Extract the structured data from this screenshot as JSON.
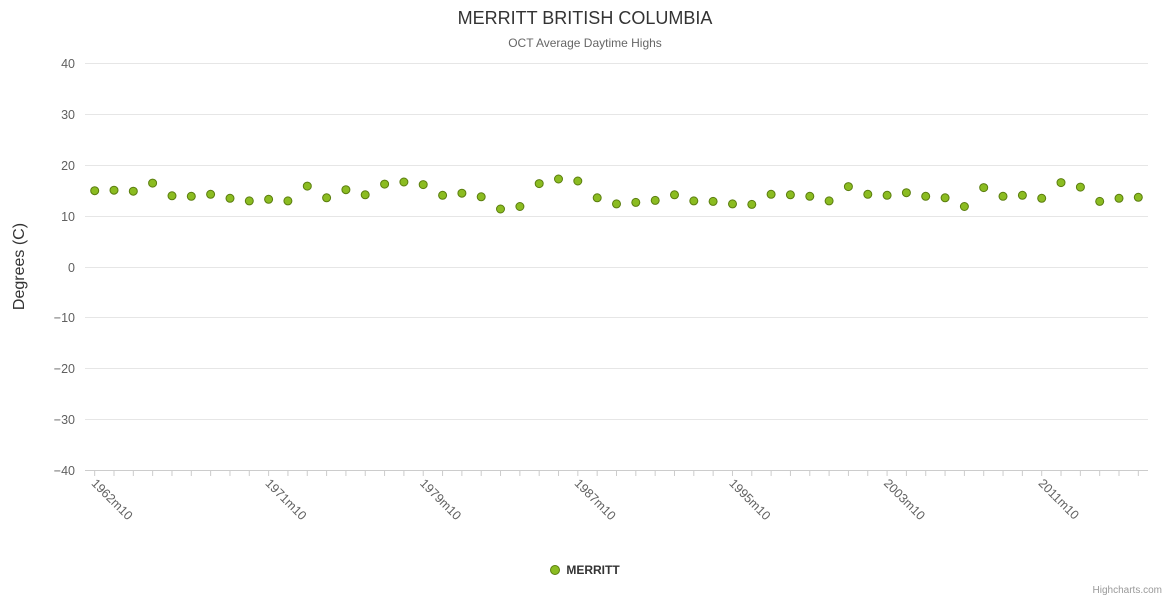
{
  "header": {
    "title": "MERRITT BRITISH COLUMBIA",
    "subtitle": "OCT Average Daytime Highs"
  },
  "legend": {
    "label": "MERRITT",
    "position": "bottom"
  },
  "credits": {
    "label": "Highcharts.com"
  },
  "chart_data": {
    "type": "scatter",
    "title": "MERRITT BRITISH COLUMBIA",
    "subtitle": "OCT Average Daytime Highs",
    "xlabel": "",
    "ylabel": "Degrees (C)",
    "ylim": [
      -40,
      40
    ],
    "grid": "horizontal",
    "legend_position": "bottom",
    "yticks": [
      {
        "value": 40,
        "label": "40"
      },
      {
        "value": 30,
        "label": "30"
      },
      {
        "value": 20,
        "label": "20"
      },
      {
        "value": 10,
        "label": "10"
      },
      {
        "value": 0,
        "label": "0"
      },
      {
        "value": -10,
        "label": "−10"
      },
      {
        "value": -20,
        "label": "−20"
      },
      {
        "value": -30,
        "label": "−30"
      },
      {
        "value": -40,
        "label": "−40"
      }
    ],
    "xticks": [
      {
        "index": 0,
        "label": "1962m10"
      },
      {
        "index": 9,
        "label": "1971m10"
      },
      {
        "index": 17,
        "label": "1979m10"
      },
      {
        "index": 25,
        "label": "1987m10"
      },
      {
        "index": 33,
        "label": "1995m10"
      },
      {
        "index": 41,
        "label": "2003m10"
      },
      {
        "index": 49,
        "label": "2011m10"
      }
    ],
    "x_years": [
      1962,
      1963,
      1964,
      1965,
      1966,
      1967,
      1968,
      1969,
      1970,
      1971,
      1972,
      1973,
      1974,
      1975,
      1976,
      1977,
      1978,
      1979,
      1980,
      1981,
      1982,
      1983,
      1984,
      1985,
      1986,
      1987,
      1988,
      1989,
      1990,
      1991,
      1992,
      1993,
      1994,
      1995,
      1996,
      1997,
      1998,
      1999,
      2000,
      2001,
      2002,
      2003,
      2004,
      2005,
      2006,
      2007,
      2008,
      2009,
      2010,
      2011,
      2012,
      2013,
      2014,
      2015,
      2016
    ],
    "x_month": "m10",
    "series": [
      {
        "name": "MERRITT",
        "color": "#8bbc21",
        "border_color": "#5a7d0e",
        "values": [
          14.9,
          15.0,
          14.8,
          16.4,
          13.9,
          13.8,
          14.2,
          13.4,
          12.9,
          13.2,
          12.9,
          15.8,
          13.5,
          15.1,
          14.1,
          16.2,
          16.6,
          16.1,
          14.0,
          14.4,
          13.7,
          11.3,
          11.8,
          16.3,
          17.2,
          16.8,
          13.5,
          12.3,
          12.6,
          13.0,
          14.1,
          12.9,
          12.8,
          12.3,
          12.2,
          14.2,
          14.1,
          13.8,
          12.9,
          15.7,
          14.2,
          14.0,
          14.5,
          13.8,
          13.5,
          11.8,
          15.5,
          13.8,
          14.0,
          13.4,
          16.5,
          15.6,
          12.8,
          13.4,
          13.6
        ]
      }
    ],
    "colors": {
      "grid": "#e6e6e6",
      "axis_line": "#cccccc",
      "axis_label": "#606060",
      "axis_title": "#333333",
      "title": "#333333",
      "subtitle": "#666666",
      "legend_text": "#333333",
      "credits": "#999999",
      "background": "#ffffff"
    }
  }
}
